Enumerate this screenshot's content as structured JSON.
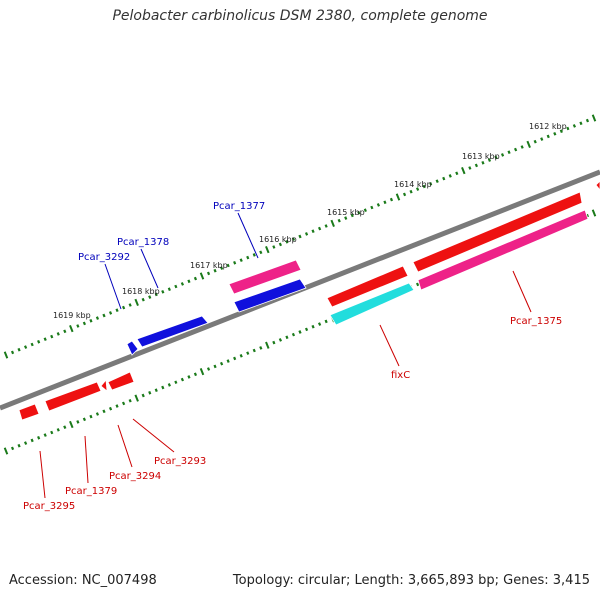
{
  "title": "Pelobacter carbinolicus DSM 2380, complete genome",
  "footer": {
    "accession": "Accession: NC_007498",
    "topology": "Topology: circular; Length: 3,665,893 bp; Genes: 3,415"
  },
  "colors": {
    "backbone": "#7a7a7a",
    "tick": "#1a7a1a",
    "blue_gene": "#1010dd",
    "red_gene": "#ee1111",
    "pink_gene": "#ee2288",
    "cyan_gene": "#22dddd",
    "blue_label": "#0000bb",
    "red_label": "#cc0000"
  },
  "kbp_labels": [
    "1612 kbp",
    "1613 kbp",
    "1614 kbp",
    "1615 kbp",
    "1616 kbp",
    "1617 kbp",
    "1618 kbp",
    "1619 kbp"
  ],
  "upper_labels": [
    "Pcar_1377",
    "Pcar_1378",
    "Pcar_3292"
  ],
  "lower_labels": [
    "Pcar_1375",
    "fixC",
    "Pcar_3293",
    "Pcar_3294",
    "Pcar_1379",
    "Pcar_3295"
  ]
}
